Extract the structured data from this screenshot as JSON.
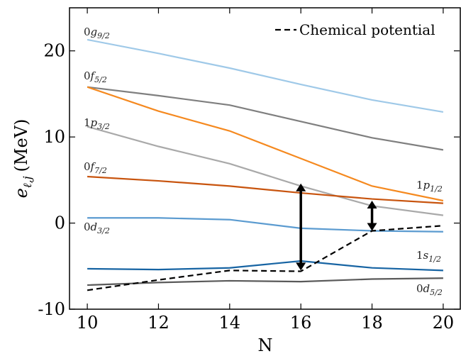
{
  "chart_data": {
    "type": "line",
    "xlabel": "N",
    "ylabel": "e",
    "ylabel_sub": "ℓ,j",
    "ylabel_unit": "(MeV)",
    "xlim": [
      9.5,
      20.5
    ],
    "ylim": [
      -10,
      25
    ],
    "xticks": [
      10,
      12,
      14,
      16,
      18,
      20
    ],
    "yticks": [
      -10,
      0,
      10,
      20
    ],
    "x": [
      10,
      12,
      14,
      16,
      18,
      20
    ],
    "legend": {
      "label": "Chemical potential",
      "position": "top-right"
    },
    "series": [
      {
        "id": "0g92",
        "orbital": "0g",
        "sub": "9/2",
        "color": "#9fc9e8",
        "values": [
          21.3,
          19.7,
          18.0,
          16.1,
          14.3,
          12.9
        ],
        "label_side": "left"
      },
      {
        "id": "0f52",
        "orbital": "0f",
        "sub": "5/2",
        "color": "#7f7f7f",
        "values": [
          15.8,
          14.8,
          13.7,
          11.8,
          9.9,
          8.5
        ],
        "label_side": "left"
      },
      {
        "id": "1p32",
        "orbital": "1p",
        "sub": "3/2",
        "color": "#a9a9a9",
        "values": [
          11.2,
          8.9,
          6.9,
          4.3,
          2.0,
          0.9
        ],
        "label_side": "left"
      },
      {
        "id": "1p12",
        "orbital": "1p",
        "sub": "1/2",
        "color": "#f5891f",
        "values": [
          15.8,
          13.0,
          10.7,
          7.5,
          4.3,
          2.6
        ],
        "label_side": "right"
      },
      {
        "id": "0f72",
        "orbital": "0f",
        "sub": "7/2",
        "color": "#c8540e",
        "values": [
          5.4,
          4.9,
          4.3,
          3.5,
          2.8,
          2.3
        ],
        "label_side": "left"
      },
      {
        "id": "0d32",
        "orbital": "0d",
        "sub": "3/2",
        "color": "#5b9bd0",
        "values": [
          0.6,
          0.6,
          0.4,
          -0.6,
          -0.9,
          -1.0
        ],
        "label_side": "left"
      },
      {
        "id": "1s12",
        "orbital": "1s",
        "sub": "1/2",
        "color": "#1764a3",
        "values": [
          -5.3,
          -5.4,
          -5.2,
          -4.4,
          -5.2,
          -5.5
        ],
        "label_side": "right"
      },
      {
        "id": "0d52",
        "orbital": "0d",
        "sub": "5/2",
        "color": "#5a5a5a",
        "values": [
          -7.2,
          -6.9,
          -6.7,
          -6.8,
          -6.5,
          -6.4
        ],
        "label_side": "right"
      }
    ],
    "chemical_potential": {
      "x": [
        10,
        12,
        14,
        16,
        18,
        20
      ],
      "values": [
        -7.8,
        -6.6,
        -5.5,
        -5.6,
        -0.9,
        -0.3
      ]
    },
    "gap_arrows": [
      {
        "x": 16,
        "y_from": -5.5,
        "y_to": 4.6
      },
      {
        "x": 18,
        "y_from": -0.9,
        "y_to": 2.6
      }
    ]
  }
}
